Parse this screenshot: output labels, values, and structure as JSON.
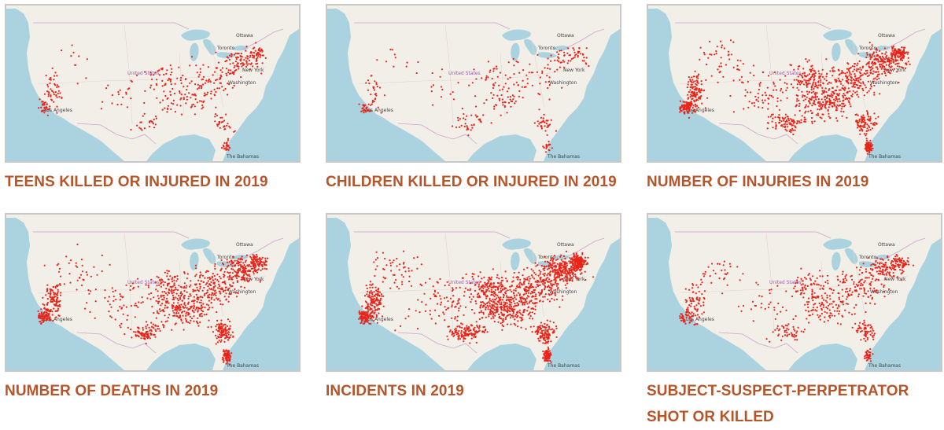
{
  "map_labels": {
    "country": "United States",
    "ottawa": "Ottawa",
    "toronto": "Toronto",
    "new_york": "New York",
    "washington": "Washington",
    "los_angeles": "Los Angeles",
    "bahamas": "The Bahamas"
  },
  "maps": [
    {
      "title": "TEENS KILLED OR INJURED IN 2019",
      "density": 0.22,
      "point_color": "#e8251a"
    },
    {
      "title": "CHILDREN KILLED OR INJURED IN 2019",
      "density": 0.13,
      "point_color": "#e8251a"
    },
    {
      "title": "NUMBER OF INJURIES IN 2019",
      "density": 0.75,
      "point_color": "#e8251a"
    },
    {
      "title": "NUMBER OF DEATHS IN 2019",
      "density": 0.7,
      "point_color": "#e8251a"
    },
    {
      "title": "INCIDENTS IN 2019",
      "density": 1.0,
      "point_color": "#e8251a"
    },
    {
      "title": "SUBJECT-SUSPECT-PERPETRATOR SHOT OR KILLED",
      "density": 0.38,
      "point_color": "#e8251a"
    }
  ],
  "colors": {
    "caption": "#b7552a",
    "water": "#aad3df",
    "land": "#f2efe9",
    "border": "#c9c9c9"
  }
}
